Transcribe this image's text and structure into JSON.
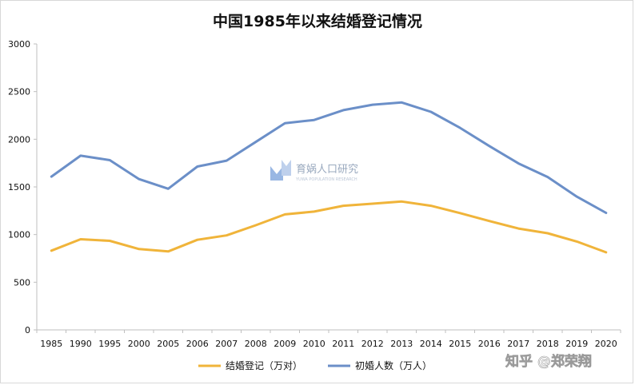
{
  "chart_data": {
    "type": "line",
    "title": "中国1985年以来结婚登记情况",
    "categories": [
      "1985",
      "1990",
      "1995",
      "2000",
      "2005",
      "2006",
      "2007",
      "2008",
      "2009",
      "2010",
      "2011",
      "2012",
      "2013",
      "2014",
      "2015",
      "2016",
      "2017",
      "2018",
      "2019",
      "2020"
    ],
    "series": [
      {
        "name": "结婚登记（万对）",
        "color": "#f0b43a",
        "values": [
          831,
          951,
          934,
          848,
          823,
          945,
          991,
          1098,
          1212,
          1241,
          1302,
          1324,
          1347,
          1302,
          1225,
          1142,
          1063,
          1014,
          927,
          814
        ]
      },
      {
        "name": "初婚人数（万人）",
        "color": "#6b8fc8",
        "values": [
          1608,
          1828,
          1781,
          1582,
          1481,
          1714,
          1776,
          1972,
          2169,
          2202,
          2305,
          2362,
          2386,
          2288,
          2119,
          1929,
          1746,
          1604,
          1398,
          1228
        ]
      }
    ],
    "yticks": [
      0,
      500,
      1000,
      1500,
      2000,
      2500,
      3000
    ],
    "ylim": [
      0,
      3000
    ],
    "grid": false,
    "legend_position": "bottom"
  },
  "watermark": {
    "text": "育娲人口研究",
    "subtext": "YUWA POPULATION RESEARCH"
  },
  "credit": "知乎 @郑荣翔"
}
